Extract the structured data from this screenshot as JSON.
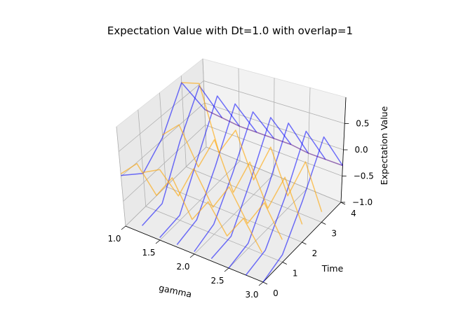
{
  "chart_data": {
    "type": "line3d",
    "title": "Expectation Value with Dt=1.0 with overlap=1",
    "xlabel": "gamma",
    "ylabel": "Time",
    "zlabel": "Expectation Value",
    "xlim": [
      1.0,
      3.0
    ],
    "ylim": [
      0,
      4
    ],
    "zlim": [
      -1.0,
      1.0
    ],
    "xticks": [
      "1.0",
      "1.5",
      "2.0",
      "2.5",
      "3.0"
    ],
    "yticks": [
      "0",
      "1",
      "2",
      "3",
      "4"
    ],
    "zticks": [
      "-1.0",
      "-0.5",
      "0.0",
      "0.5"
    ],
    "grid": true,
    "series": [
      {
        "color": "#0000ff",
        "alpha": 0.55,
        "x": [
          1.0,
          1.0,
          1.0,
          1.0,
          1.0
        ],
        "y": [
          0,
          1,
          2,
          3,
          4
        ],
        "z": [
          0.02,
          -0.32,
          0.05,
          0.85,
          -0.15
        ]
      },
      {
        "color": "#0000ff",
        "alpha": 0.55,
        "x": [
          1.25,
          1.25,
          1.25,
          1.25,
          1.25
        ],
        "y": [
          0,
          1,
          2,
          3,
          4
        ],
        "z": [
          -0.85,
          -0.8,
          0.1,
          0.9,
          -0.2
        ]
      },
      {
        "color": "#0000ff",
        "alpha": 0.55,
        "x": [
          1.5,
          1.5,
          1.5,
          1.5,
          1.5
        ],
        "y": [
          0,
          1,
          2,
          3,
          4
        ],
        "z": [
          -0.95,
          -0.9,
          -0.1,
          0.8,
          -0.25
        ]
      },
      {
        "color": "#0000ff",
        "alpha": 0.55,
        "x": [
          1.75,
          1.75,
          1.75,
          1.75,
          1.75
        ],
        "y": [
          0,
          1,
          2,
          3,
          4
        ],
        "z": [
          -0.95,
          -0.85,
          -0.15,
          0.75,
          -0.25
        ]
      },
      {
        "color": "#0000ff",
        "alpha": 0.55,
        "x": [
          2.0,
          2.0,
          2.0,
          2.0,
          2.0
        ],
        "y": [
          0,
          1,
          2,
          3,
          4
        ],
        "z": [
          -0.95,
          -0.8,
          -0.15,
          0.7,
          -0.25
        ]
      },
      {
        "color": "#0000ff",
        "alpha": 0.55,
        "x": [
          2.25,
          2.25,
          2.25,
          2.25,
          2.25
        ],
        "y": [
          0,
          1,
          2,
          3,
          4
        ],
        "z": [
          -0.95,
          -0.9,
          -0.2,
          0.7,
          -0.25
        ]
      },
      {
        "color": "#0000ff",
        "alpha": 0.55,
        "x": [
          2.5,
          2.5,
          2.5,
          2.5,
          2.5
        ],
        "y": [
          0,
          1,
          2,
          3,
          4
        ],
        "z": [
          -1.0,
          -0.9,
          -0.2,
          0.7,
          -0.3
        ]
      },
      {
        "color": "#0000ff",
        "alpha": 0.55,
        "x": [
          2.75,
          2.75,
          2.75,
          2.75,
          2.75
        ],
        "y": [
          0,
          1,
          2,
          3,
          4
        ],
        "z": [
          -1.0,
          -0.9,
          -0.25,
          0.65,
          -0.3
        ]
      },
      {
        "color": "#0000ff",
        "alpha": 0.55,
        "x": [
          3.0,
          3.0,
          3.0,
          3.0,
          3.0
        ],
        "y": [
          0,
          1,
          2,
          3,
          4
        ],
        "z": [
          -1.0,
          -0.85,
          -0.2,
          0.65,
          -0.3
        ]
      },
      {
        "color": "#ffa500",
        "alpha": 0.6,
        "x": [
          1.0,
          1.25,
          1.5,
          1.75,
          2.0,
          2.25,
          2.5,
          2.75,
          3.0
        ],
        "y": [
          0,
          0,
          0,
          0,
          0,
          0,
          0,
          0,
          0
        ],
        "z": [
          0.05,
          0.4,
          -0.1,
          0.4,
          -0.3,
          0.2,
          -0.35,
          0.15,
          -0.4
        ]
      },
      {
        "color": "#ffa500",
        "alpha": 0.6,
        "x": [
          1.0,
          1.25,
          1.5,
          1.75,
          2.0,
          2.25,
          2.5,
          2.75,
          3.0
        ],
        "y": [
          1,
          1,
          1,
          1,
          1,
          1,
          1,
          1,
          1
        ],
        "z": [
          -0.3,
          -0.1,
          -0.5,
          0.2,
          -0.45,
          0.1,
          -0.5,
          0.05,
          -0.55
        ]
      },
      {
        "color": "#ffa500",
        "alpha": 0.6,
        "x": [
          1.0,
          1.25,
          1.5,
          1.75,
          2.0,
          2.25,
          2.5,
          2.75,
          3.0
        ],
        "y": [
          2,
          2,
          2,
          2,
          2,
          2,
          2,
          2,
          2
        ],
        "z": [
          0.1,
          0.45,
          -0.3,
          0.4,
          -0.55,
          0.2,
          -0.6,
          0.15,
          -0.65
        ]
      },
      {
        "color": "#ffa500",
        "alpha": 0.6,
        "x": [
          1.0,
          1.25,
          1.5,
          1.75,
          2.0,
          2.25,
          2.5,
          2.75,
          3.0
        ],
        "y": [
          3,
          3,
          3,
          3,
          3,
          3,
          3,
          3,
          3
        ],
        "z": [
          0.85,
          0.95,
          -0.4,
          0.2,
          -0.7,
          0.1,
          -0.75,
          0.05,
          -0.8
        ]
      },
      {
        "color": "#4b0082",
        "alpha": 0.55,
        "x": [
          1.0,
          1.25,
          1.5,
          1.75,
          2.0,
          2.25,
          2.5,
          2.75,
          3.0
        ],
        "y": [
          4,
          4,
          4,
          4,
          4,
          4,
          4,
          4,
          4
        ],
        "z": [
          -0.15,
          -0.2,
          -0.25,
          -0.25,
          -0.25,
          -0.25,
          -0.3,
          -0.3,
          -0.3
        ]
      }
    ]
  }
}
